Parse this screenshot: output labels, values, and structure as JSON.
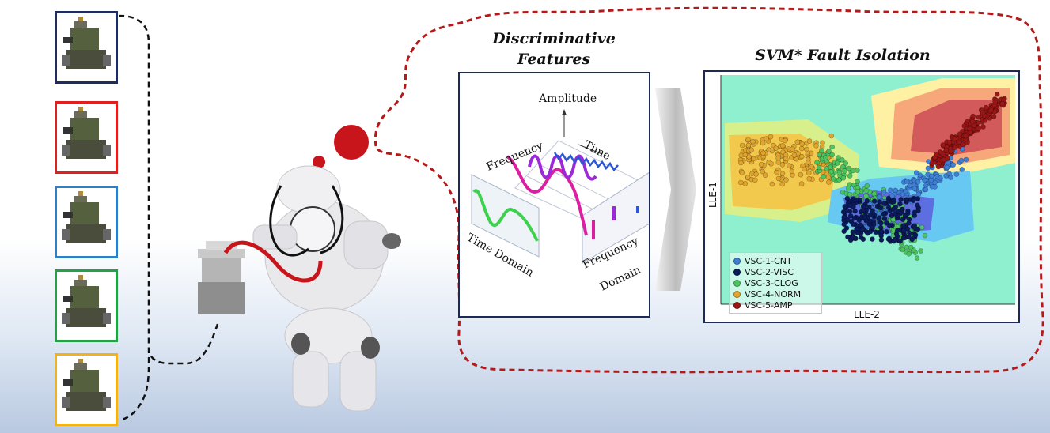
{
  "features": {
    "title": "Discriminative Features",
    "amplitude_label": "Amplitude",
    "frequency_label": "Frequency",
    "time_label": "Time",
    "time_domain_label": "Time Domain",
    "frequency_domain_label": "Frequency Domain"
  },
  "svm": {
    "title": "SVM* Fault Isolation",
    "y_axis_label": "LLE-1",
    "x_axis_label": "LLE-2",
    "legend": [
      {
        "label": "VSC-1-CNT",
        "color": "#3f7fd6"
      },
      {
        "label": "VSC-2-VISC",
        "color": "#0b1a5a"
      },
      {
        "label": "VSC-3-CLOG",
        "color": "#4bc35f"
      },
      {
        "label": "VSC-4-NORM",
        "color": "#e0a52f"
      },
      {
        "label": "VSC-5-AMP",
        "color": "#9c1616"
      }
    ]
  },
  "valves": [
    {
      "id": "VSC-1",
      "frame_color": "#1f2d5e"
    },
    {
      "id": "VSC-2",
      "frame_color": "#e01f1f"
    },
    {
      "id": "VSC-3",
      "frame_color": "#2e7fc4"
    },
    {
      "id": "VSC-4",
      "frame_color": "#24a147"
    },
    {
      "id": "VSC-5",
      "frame_color": "#f0b31c"
    }
  ],
  "colors": {
    "dashed_black": "#111111",
    "dashed_red": "#b31b1b",
    "thought_bubble": "#c8141b",
    "panel_border": "#1c2a5a"
  }
}
